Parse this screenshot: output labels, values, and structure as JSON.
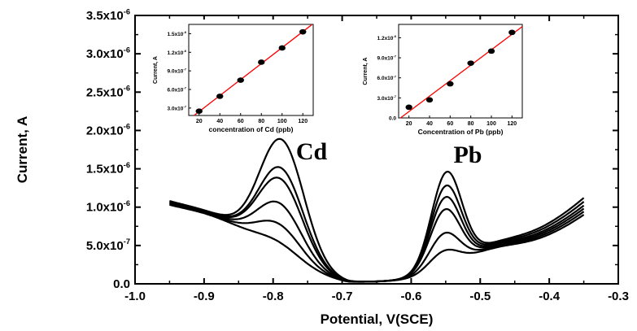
{
  "chart_data": [
    {
      "type": "line",
      "xlabel": "Potential, V(SCE)",
      "ylabel": "Current, A",
      "xlim": [
        -1.0,
        -0.3
      ],
      "ylim": [
        0.0,
        3.5e-06
      ],
      "x_ticks": [
        "-1.0",
        "-0.9",
        "-0.8",
        "-0.7",
        "-0.6",
        "-0.5",
        "-0.4",
        "-0.3"
      ],
      "y_ticks": [
        "0.0",
        "5.0x10",
        "1.0x10",
        "1.5x10",
        "2.0x10",
        "2.5x10",
        "3.0x10",
        "3.5x10"
      ],
      "y_tick_exponents": [
        "",
        "-7",
        "-6",
        "-6",
        "-6",
        "-6",
        "-6",
        "-6"
      ],
      "annotations": [
        "Cd",
        "Pb"
      ],
      "line_color": "#000000",
      "series": [
        {
          "cd_peak": 5.5e-07,
          "pb_peak": 4.3e-07,
          "start": 9.3e-07,
          "end": 9e-07
        },
        {
          "cd_peak": 7.8e-07,
          "pb_peak": 6.6e-07,
          "start": 9.4e-07,
          "end": 9.4e-07
        },
        {
          "cd_peak": 1.05e-06,
          "pb_peak": 9.7e-07,
          "start": 9.5e-07,
          "end": 9.8e-07
        },
        {
          "cd_peak": 1.37e-06,
          "pb_peak": 1.13e-06,
          "start": 9.6e-07,
          "end": 1.02e-06
        },
        {
          "cd_peak": 1.51e-06,
          "pb_peak": 1.28e-06,
          "start": 9.7e-07,
          "end": 1.07e-06
        },
        {
          "cd_peak": 1.88e-06,
          "pb_peak": 1.46e-06,
          "start": 9.8e-07,
          "end": 1.12e-06
        }
      ]
    },
    {
      "type": "scatter",
      "xlabel": "concentration of Cd (ppb)",
      "ylabel": "Current, A",
      "xlim": [
        10,
        130
      ],
      "ylim": [
        1.8e-07,
        1.65e-06
      ],
      "x_ticks": [
        "20",
        "40",
        "60",
        "80",
        "100",
        "120"
      ],
      "y_ticks": [
        "3.0x10",
        "6.0x10",
        "9.0x10",
        "1.2x10",
        "1.5x10"
      ],
      "y_tick_exponents": [
        "-7",
        "-7",
        "-7",
        "-6",
        "-6"
      ],
      "x": [
        20,
        40,
        60,
        80,
        100,
        120
      ],
      "y": [
        2.5e-07,
        4.9e-07,
        7.5e-07,
        1.04e-06,
        1.27e-06,
        1.53e-06
      ],
      "fit_color": "#ff0000"
    },
    {
      "type": "scatter",
      "xlabel": "Concentration of Pb (ppb)",
      "ylabel": "Current, A",
      "xlim": [
        10,
        130
      ],
      "ylim": [
        0.0,
        1.4e-06
      ],
      "x_ticks": [
        "20",
        "40",
        "60",
        "80",
        "100",
        "120"
      ],
      "y_ticks": [
        "0.0",
        "3.0x10",
        "6.0x10",
        "9.0x10",
        "1.2x10"
      ],
      "y_tick_exponents": [
        "",
        "-7",
        "-7",
        "-7",
        "-6"
      ],
      "x": [
        20,
        40,
        60,
        80,
        100,
        120
      ],
      "y": [
        1.6e-07,
        2.7e-07,
        5.1e-07,
        8.2e-07,
        1e-06,
        1.28e-06
      ],
      "fit_color": "#ff0000"
    }
  ]
}
